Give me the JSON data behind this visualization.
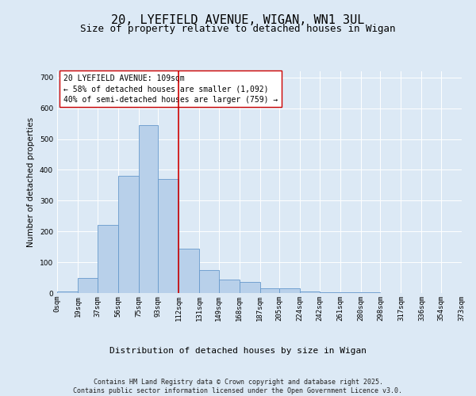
{
  "title": "20, LYEFIELD AVENUE, WIGAN, WN1 3UL",
  "subtitle": "Size of property relative to detached houses in Wigan",
  "xlabel": "Distribution of detached houses by size in Wigan",
  "ylabel": "Number of detached properties",
  "annotation_lines": [
    "20 LYEFIELD AVENUE: 109sqm",
    "← 58% of detached houses are smaller (1,092)",
    "40% of semi-detached houses are larger (759) →"
  ],
  "bin_labels": [
    "0sqm",
    "19sqm",
    "37sqm",
    "56sqm",
    "75sqm",
    "93sqm",
    "112sqm",
    "131sqm",
    "149sqm",
    "168sqm",
    "187sqm",
    "205sqm",
    "224sqm",
    "242sqm",
    "261sqm",
    "280sqm",
    "298sqm",
    "317sqm",
    "336sqm",
    "354sqm",
    "373sqm"
  ],
  "bin_edges": [
    0,
    19,
    37,
    56,
    75,
    93,
    112,
    131,
    149,
    168,
    187,
    205,
    224,
    242,
    261,
    280,
    298,
    317,
    336,
    354,
    373
  ],
  "bar_values": [
    5,
    50,
    220,
    380,
    545,
    370,
    145,
    75,
    45,
    35,
    15,
    15,
    5,
    2,
    2,
    2,
    1,
    0,
    0,
    0
  ],
  "bar_color": "#b8d0ea",
  "bar_edge_color": "#6699cc",
  "vline_color": "#cc0000",
  "vline_x": 112,
  "background_color": "#dce9f5",
  "plot_bg_color": "#dce9f5",
  "ylim": [
    0,
    720
  ],
  "yticks": [
    0,
    100,
    200,
    300,
    400,
    500,
    600,
    700
  ],
  "footer": "Contains HM Land Registry data © Crown copyright and database right 2025.\nContains public sector information licensed under the Open Government Licence v3.0.",
  "title_fontsize": 11,
  "subtitle_fontsize": 9,
  "annotation_fontsize": 7,
  "tick_fontsize": 6.5,
  "ylabel_fontsize": 7.5,
  "xlabel_fontsize": 8,
  "footer_fontsize": 6
}
